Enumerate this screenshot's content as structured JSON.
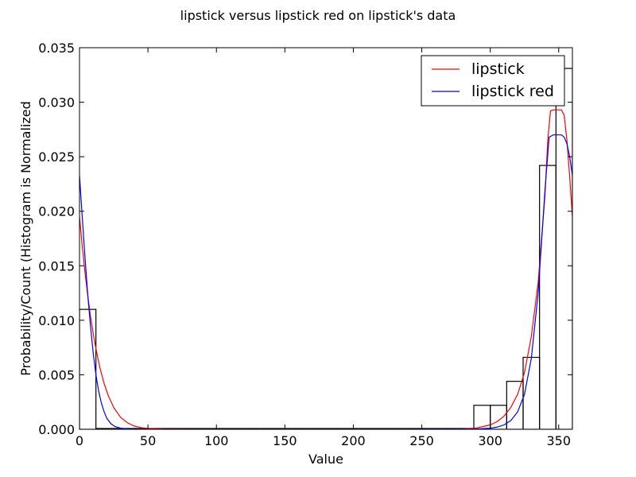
{
  "chart_data": {
    "type": "histogram+line",
    "title": "lipstick versus lipstick red on lipstick's data",
    "xlabel": "Value",
    "ylabel": "Probability/Count (Histogram is Normalized",
    "xlim": [
      0,
      360
    ],
    "ylim": [
      0,
      0.035
    ],
    "x_ticks": [
      0,
      50,
      100,
      150,
      200,
      250,
      300,
      350
    ],
    "x_tick_labels": [
      "0",
      "50",
      "100",
      "150",
      "200",
      "250",
      "300",
      "350"
    ],
    "y_ticks": [
      0,
      0.005,
      0.01,
      0.015,
      0.02,
      0.025,
      0.03,
      0.035
    ],
    "y_tick_labels": [
      "0.000",
      "0.005",
      "0.010",
      "0.015",
      "0.020",
      "0.025",
      "0.030",
      "0.035"
    ],
    "grid": false,
    "legend_position": "top-right",
    "histogram": {
      "color": "#000000",
      "bins": [
        {
          "x0": 0,
          "x1": 12,
          "value": 0.011
        },
        {
          "x0": 12,
          "x1": 24,
          "value": 0
        },
        {
          "x0": 24,
          "x1": 36,
          "value": 0
        },
        {
          "x0": 36,
          "x1": 48,
          "value": 0
        },
        {
          "x0": 48,
          "x1": 60,
          "value": 0
        },
        {
          "x0": 60,
          "x1": 72,
          "value": 0
        },
        {
          "x0": 72,
          "x1": 84,
          "value": 0
        },
        {
          "x0": 84,
          "x1": 96,
          "value": 0
        },
        {
          "x0": 96,
          "x1": 108,
          "value": 0
        },
        {
          "x0": 108,
          "x1": 120,
          "value": 0
        },
        {
          "x0": 120,
          "x1": 132,
          "value": 0
        },
        {
          "x0": 132,
          "x1": 144,
          "value": 0
        },
        {
          "x0": 144,
          "x1": 156,
          "value": 0
        },
        {
          "x0": 156,
          "x1": 168,
          "value": 0
        },
        {
          "x0": 168,
          "x1": 180,
          "value": 0
        },
        {
          "x0": 180,
          "x1": 192,
          "value": 0
        },
        {
          "x0": 192,
          "x1": 204,
          "value": 0
        },
        {
          "x0": 204,
          "x1": 216,
          "value": 0
        },
        {
          "x0": 216,
          "x1": 228,
          "value": 0
        },
        {
          "x0": 228,
          "x1": 240,
          "value": 0
        },
        {
          "x0": 240,
          "x1": 252,
          "value": 0
        },
        {
          "x0": 252,
          "x1": 264,
          "value": 0
        },
        {
          "x0": 264,
          "x1": 276,
          "value": 0
        },
        {
          "x0": 276,
          "x1": 288,
          "value": 0
        },
        {
          "x0": 288,
          "x1": 300,
          "value": 0.0022
        },
        {
          "x0": 300,
          "x1": 312,
          "value": 0.0022
        },
        {
          "x0": 312,
          "x1": 324,
          "value": 0.0044
        },
        {
          "x0": 324,
          "x1": 336,
          "value": 0.0066
        },
        {
          "x0": 336,
          "x1": 348,
          "value": 0.0242
        },
        {
          "x0": 348,
          "x1": 360,
          "value": 0.0331
        }
      ]
    },
    "series": [
      {
        "name": "lipstick",
        "color": "#ff0000",
        "x": [
          0,
          2,
          4,
          6,
          8,
          10,
          12,
          15,
          18,
          21,
          25,
          30,
          35,
          40,
          45,
          50,
          60,
          80,
          100,
          150,
          200,
          250,
          270,
          280,
          290,
          300,
          305,
          310,
          315,
          320,
          325,
          330,
          335,
          340,
          342,
          344,
          346,
          348,
          350,
          352,
          354,
          356,
          358,
          360
        ],
        "y": [
          0.0195,
          0.0168,
          0.0144,
          0.0123,
          0.0104,
          0.0088,
          0.0074,
          0.0056,
          0.0042,
          0.0031,
          0.002,
          0.0011,
          0.0006,
          0.0003,
          0.00015,
          8e-05,
          2e-05,
          0,
          0,
          0,
          0,
          0,
          0,
          3e-05,
          0.00012,
          0.0004,
          0.0007,
          0.0012,
          0.002,
          0.0032,
          0.0052,
          0.0085,
          0.0135,
          0.0215,
          0.0265,
          0.0292,
          0.0293,
          0.0293,
          0.0293,
          0.0293,
          0.0288,
          0.0265,
          0.0232,
          0.0195
        ]
      },
      {
        "name": "lipstick red",
        "color": "#0000ff",
        "x": [
          0,
          2,
          4,
          6,
          8,
          10,
          12,
          14,
          16,
          18,
          20,
          23,
          26,
          30,
          35,
          40,
          50,
          80,
          150,
          250,
          290,
          300,
          305,
          310,
          315,
          320,
          325,
          330,
          335,
          340,
          343,
          346,
          350,
          352,
          354,
          356,
          358,
          360
        ],
        "y": [
          0.0233,
          0.0195,
          0.0158,
          0.0124,
          0.0095,
          0.007,
          0.005,
          0.0035,
          0.0024,
          0.0016,
          0.001,
          0.0005,
          0.00025,
          0.0001,
          3e-05,
          1e-05,
          0,
          0,
          0,
          0,
          3e-05,
          0.0001,
          0.0002,
          0.0004,
          0.0008,
          0.0016,
          0.0032,
          0.0065,
          0.0125,
          0.022,
          0.0268,
          0.027,
          0.027,
          0.027,
          0.0268,
          0.0262,
          0.025,
          0.0233
        ]
      }
    ]
  }
}
